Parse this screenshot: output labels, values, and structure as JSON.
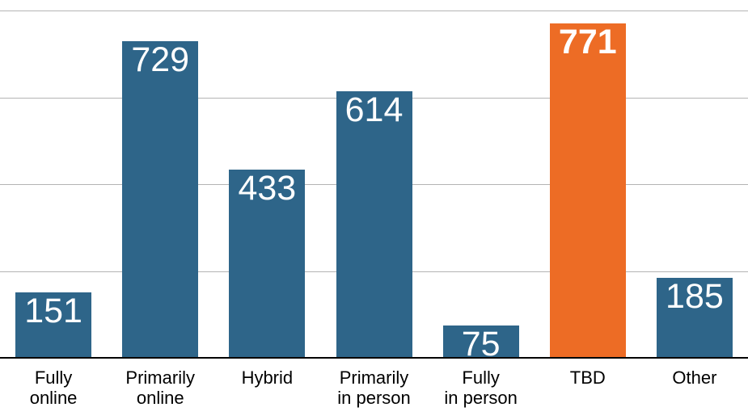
{
  "chart_data": {
    "type": "bar",
    "title": "",
    "xlabel": "",
    "ylabel": "",
    "categories": [
      "Fully online",
      "Primarily online",
      "Hybrid",
      "Primarily in person",
      "Fully in person",
      "TBD",
      "Other"
    ],
    "category_label_lines": [
      [
        "Fully",
        "online"
      ],
      [
        "Primarily",
        "online"
      ],
      [
        "Hybrid"
      ],
      [
        "Primarily",
        "in person"
      ],
      [
        "Fully",
        "in person"
      ],
      [
        "TBD"
      ],
      [
        "Other"
      ]
    ],
    "values": [
      151,
      729,
      433,
      614,
      75,
      771,
      185
    ],
    "value_labels": [
      "151",
      "729",
      "433",
      "614",
      "75",
      "771",
      "185"
    ],
    "highlight_index": 5,
    "highlighted_category": "TBD",
    "ylim": [
      0,
      800
    ],
    "gridline_step": 200,
    "grid": true,
    "legend": false,
    "y_axis_labels_shown": false,
    "colors": {
      "bar": "#2e6589",
      "highlight": "#ed6c25",
      "value_label": "#ffffff",
      "gridline": "#b4b4b4",
      "axis_line": "#000000",
      "category_label": "#000000",
      "background": "#ffffff"
    }
  }
}
